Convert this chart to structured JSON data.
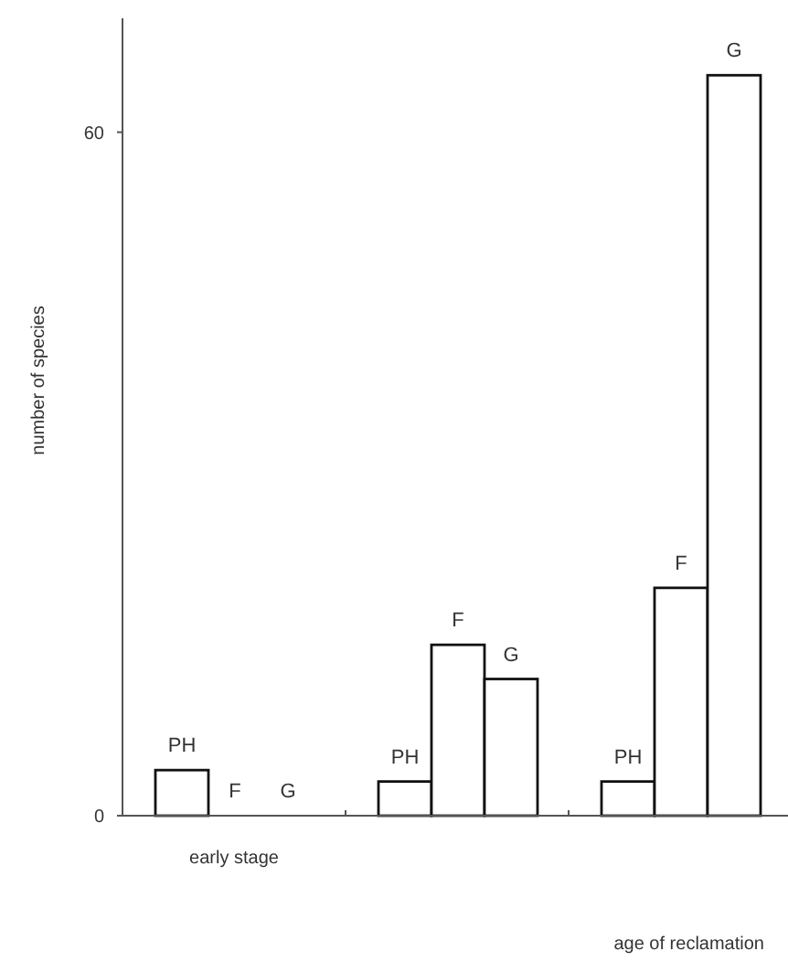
{
  "chart_data": {
    "type": "bar",
    "annotations": [
      "age of reclamation"
    ],
    "ylabel": "number of species",
    "categories": [
      "early stage",
      null,
      null
    ],
    "series": [
      {
        "name": "PH",
        "color": "#ffffff",
        "values": [
          4,
          3,
          3
        ]
      },
      {
        "name": "F",
        "color": "#ffffff",
        "values": [
          0,
          15,
          20
        ]
      },
      {
        "name": "G",
        "color": "#ffffff",
        "values": [
          0,
          12,
          65
        ]
      }
    ],
    "ylim": [
      0,
      70
    ],
    "yticks": [
      0,
      60
    ],
    "grid": false
  }
}
